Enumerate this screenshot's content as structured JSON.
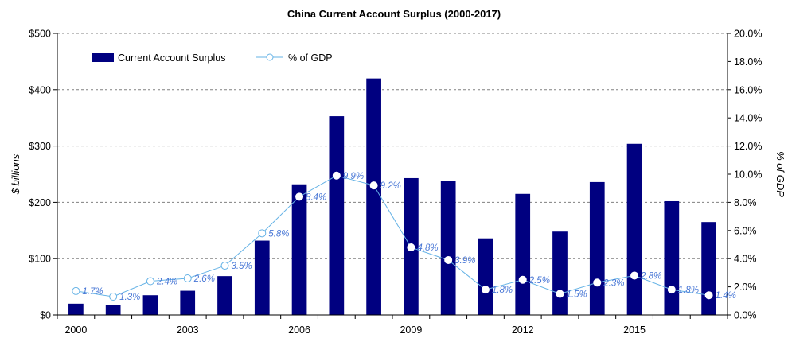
{
  "chart_data": {
    "type": "bar",
    "title": "China Current Account Surplus (2000-2017)",
    "xlabel": "",
    "ylabel": "$ billions",
    "y2label": "% of GDP",
    "categories": [
      "2000",
      "2001",
      "2002",
      "2003",
      "2004",
      "2005",
      "2006",
      "2007",
      "2008",
      "2009",
      "2010",
      "2011",
      "2012",
      "2013",
      "2014",
      "2015",
      "2016",
      "2017"
    ],
    "x_tick_labels": [
      "2000",
      "2003",
      "2006",
      "2009",
      "2012",
      "2015"
    ],
    "series": [
      {
        "name": "Current Account Surplus",
        "type": "bar",
        "axis": "left",
        "color": "#000080",
        "values": [
          20,
          17,
          35,
          43,
          69,
          132,
          232,
          353,
          420,
          243,
          238,
          136,
          215,
          148,
          236,
          304,
          202,
          165
        ]
      },
      {
        "name": "% of GDP",
        "type": "line",
        "axis": "right",
        "color": "#66b3e6",
        "values": [
          1.7,
          1.3,
          2.4,
          2.6,
          3.5,
          5.8,
          8.4,
          9.9,
          9.2,
          4.8,
          3.9,
          1.8,
          2.5,
          1.5,
          2.3,
          2.8,
          1.8,
          1.4
        ],
        "labels": [
          "1.7%",
          "1.3%",
          "2.4%",
          "2.6%",
          "3.5%",
          "5.8%",
          "8.4%",
          "9.9%",
          "9.2%",
          "4.8%",
          "3.9%",
          "1.8%",
          "2.5%",
          "1.5%",
          "2.3%",
          "2.8%",
          "1.8%",
          "1.4%"
        ],
        "hollow_markers": [
          true,
          true,
          true,
          true,
          true,
          true,
          false,
          false,
          false,
          false,
          false,
          false,
          false,
          false,
          false,
          false,
          false,
          false
        ]
      }
    ],
    "ylim": [
      0,
      500
    ],
    "y_ticks": [
      0,
      100,
      200,
      300,
      400,
      500
    ],
    "y_tick_labels": [
      "$0",
      "$100",
      "$200",
      "$300",
      "$400",
      "$500"
    ],
    "y2lim": [
      0,
      20
    ],
    "y2_ticks": [
      0,
      2,
      4,
      6,
      8,
      10,
      12,
      14,
      16,
      18,
      20
    ],
    "y2_tick_labels": [
      "0.0%",
      "2.0%",
      "4.0%",
      "6.0%",
      "8.0%",
      "10.0%",
      "12.0%",
      "14.0%",
      "16.0%",
      "18.0%",
      "20.0%"
    ],
    "grid": "horizontal-dashed",
    "legend": "top-left"
  }
}
